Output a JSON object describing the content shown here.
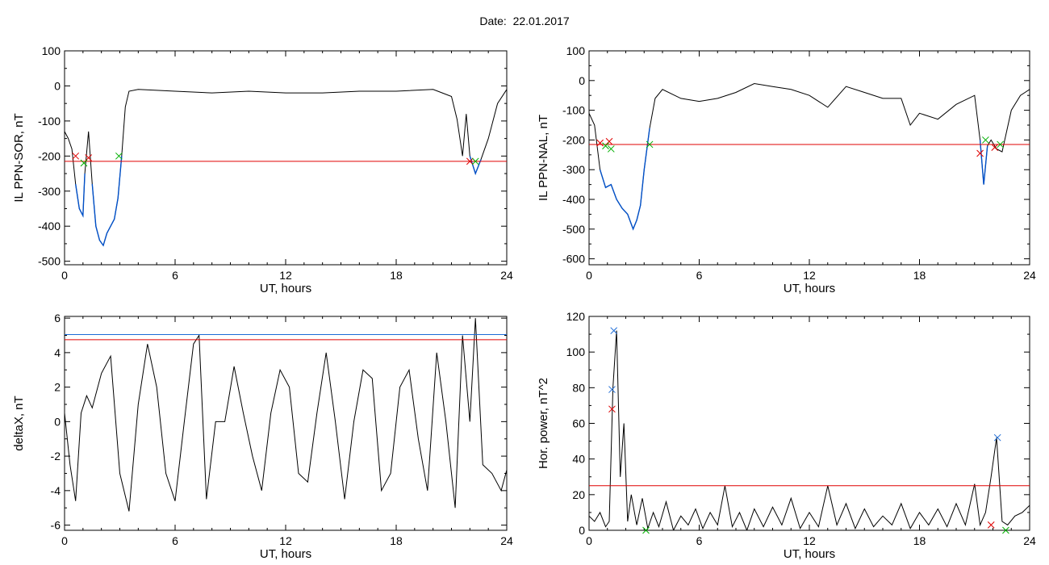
{
  "page": {
    "title": "Date:  22.01.2017"
  },
  "colors": {
    "series": "#000000",
    "highlight": "#0050c8",
    "threshold_red": "#e00000",
    "threshold_blue": "#1c6bd6",
    "marker_red": "#e00000",
    "marker_green": "#00b000",
    "marker_blue": "#1c6bd6"
  },
  "chart_data": [
    {
      "type": "line",
      "xlabel": "UT, hours",
      "ylabel": "IL PPN-SOR, nT",
      "xlim": [
        0,
        24
      ],
      "ylim": [
        -510,
        100
      ],
      "xticks": [
        0,
        6,
        12,
        18,
        24
      ],
      "yticks": [
        -500,
        -400,
        -300,
        -200,
        -100,
        0,
        100
      ],
      "series": [
        {
          "x": [
            0,
            0.2,
            0.4,
            0.6,
            0.8,
            1.0,
            1.1,
            1.3,
            1.5,
            1.7,
            1.9,
            2.1,
            2.3,
            2.5,
            2.7,
            2.9,
            3.1,
            3.3,
            3.5,
            4,
            6,
            8,
            10,
            12,
            14,
            16,
            18,
            20,
            20.5,
            21,
            21.3,
            21.6,
            21.8,
            22.0,
            22.3,
            22.6,
            23,
            23.5,
            24
          ],
          "y": [
            -130,
            -150,
            -180,
            -280,
            -350,
            -370,
            -250,
            -130,
            -280,
            -400,
            -440,
            -455,
            -420,
            -400,
            -380,
            -320,
            -200,
            -60,
            -15,
            -10,
            -15,
            -20,
            -15,
            -20,
            -20,
            -15,
            -15,
            -10,
            -20,
            -30,
            -95,
            -200,
            -80,
            -200,
            -250,
            -210,
            -150,
            -50,
            -10
          ]
        }
      ],
      "highlight_segments": [
        {
          "x": [
            0.6,
            0.8,
            1.0,
            1.1
          ],
          "y": [
            -280,
            -350,
            -370,
            -250
          ]
        },
        {
          "x": [
            1.5,
            1.7,
            1.9,
            2.1,
            2.3,
            2.5,
            2.7,
            2.9,
            3.1
          ],
          "y": [
            -280,
            -400,
            -440,
            -455,
            -420,
            -400,
            -380,
            -320,
            -200
          ]
        },
        {
          "x": [
            22.0,
            22.3,
            22.6
          ],
          "y": [
            -200,
            -250,
            -210
          ]
        }
      ],
      "hlines": [
        {
          "y": -215,
          "color": "threshold_red"
        }
      ],
      "markers": [
        {
          "x": 0.6,
          "y": -200,
          "color": "marker_red"
        },
        {
          "x": 1.3,
          "y": -205,
          "color": "marker_red"
        },
        {
          "x": 1.05,
          "y": -220,
          "color": "marker_green"
        },
        {
          "x": 2.95,
          "y": -200,
          "color": "marker_green"
        },
        {
          "x": 22.0,
          "y": -215,
          "color": "marker_red"
        },
        {
          "x": 22.3,
          "y": -215,
          "color": "marker_green"
        }
      ]
    },
    {
      "type": "line",
      "xlabel": "UT, hours",
      "ylabel": "IL PPN-NAL, nT",
      "xlim": [
        0,
        24
      ],
      "ylim": [
        -620,
        100
      ],
      "xticks": [
        0,
        6,
        12,
        18,
        24
      ],
      "yticks": [
        -600,
        -500,
        -400,
        -300,
        -200,
        -100,
        0,
        100
      ],
      "series": [
        {
          "x": [
            0,
            0.3,
            0.6,
            0.9,
            1.2,
            1.5,
            1.8,
            2.1,
            2.4,
            2.6,
            2.8,
            3.0,
            3.3,
            3.6,
            4,
            5,
            6,
            7,
            8,
            9,
            10,
            11,
            12,
            13,
            14,
            15,
            16,
            17,
            17.5,
            18,
            19,
            20,
            21,
            21.3,
            21.5,
            21.7,
            21.9,
            22.2,
            22.5,
            23,
            23.5,
            24
          ],
          "y": [
            -110,
            -150,
            -300,
            -360,
            -350,
            -400,
            -430,
            -450,
            -500,
            -470,
            -420,
            -300,
            -160,
            -60,
            -30,
            -60,
            -70,
            -60,
            -40,
            -10,
            -20,
            -30,
            -50,
            -90,
            -20,
            -40,
            -60,
            -60,
            -150,
            -110,
            -130,
            -80,
            -50,
            -200,
            -350,
            -220,
            -200,
            -230,
            -240,
            -100,
            -50,
            -30
          ]
        }
      ],
      "highlight_segments": [
        {
          "x": [
            0.6,
            0.9,
            1.2,
            1.5,
            1.8,
            2.1,
            2.4,
            2.6,
            2.8,
            3.0,
            3.3
          ],
          "y": [
            -300,
            -360,
            -350,
            -400,
            -430,
            -450,
            -500,
            -470,
            -420,
            -300,
            -160
          ]
        },
        {
          "x": [
            21.3,
            21.5,
            21.7
          ],
          "y": [
            -200,
            -350,
            -220
          ]
        }
      ],
      "hlines": [
        {
          "y": -215,
          "color": "threshold_red"
        }
      ],
      "markers": [
        {
          "x": 0.6,
          "y": -210,
          "color": "marker_red"
        },
        {
          "x": 1.1,
          "y": -205,
          "color": "marker_red"
        },
        {
          "x": 0.9,
          "y": -220,
          "color": "marker_green"
        },
        {
          "x": 1.2,
          "y": -230,
          "color": "marker_green"
        },
        {
          "x": 3.3,
          "y": -215,
          "color": "marker_green"
        },
        {
          "x": 21.3,
          "y": -245,
          "color": "marker_red"
        },
        {
          "x": 21.6,
          "y": -200,
          "color": "marker_green"
        },
        {
          "x": 22.1,
          "y": -225,
          "color": "marker_red"
        },
        {
          "x": 22.4,
          "y": -215,
          "color": "marker_green"
        }
      ]
    },
    {
      "type": "line",
      "xlabel": "UT, hours",
      "ylabel": "deltaX, nT",
      "xlim": [
        0,
        24
      ],
      "ylim": [
        -6.3,
        6.1
      ],
      "xticks": [
        0,
        6,
        12,
        18,
        24
      ],
      "yticks": [
        -6,
        -4,
        -2,
        0,
        2,
        4,
        6
      ],
      "series": [
        {
          "x": [
            0,
            0.3,
            0.6,
            0.9,
            1.2,
            1.5,
            2.0,
            2.5,
            3.0,
            3.5,
            4.0,
            4.5,
            5.0,
            5.5,
            6.0,
            6.5,
            7.0,
            7.3,
            7.7,
            8.2,
            8.7,
            9.2,
            9.7,
            10.2,
            10.7,
            11.2,
            11.7,
            12.2,
            12.7,
            13.2,
            13.7,
            14.2,
            14.7,
            15.2,
            15.7,
            16.2,
            16.7,
            17.2,
            17.7,
            18.2,
            18.7,
            19.2,
            19.7,
            20.2,
            20.7,
            21.2,
            21.6,
            22.0,
            22.3,
            22.7,
            23.2,
            23.7,
            24.0
          ],
          "y": [
            0.5,
            -2.5,
            -4.6,
            0.5,
            1.5,
            0.8,
            2.8,
            3.8,
            -3.0,
            -5.2,
            1.0,
            4.5,
            2.0,
            -3.0,
            -4.6,
            0.0,
            4.5,
            5.0,
            -4.5,
            0.0,
            0.0,
            3.2,
            0.5,
            -2.0,
            -4.0,
            0.5,
            3.0,
            2.0,
            -3.0,
            -3.5,
            0.5,
            4.0,
            0.0,
            -4.5,
            0.0,
            3.0,
            2.5,
            -4.0,
            -3.0,
            2.0,
            3.0,
            -1.0,
            -4.0,
            4.0,
            0.0,
            -5.0,
            5.0,
            0.0,
            6.0,
            -2.5,
            -3.0,
            -4.0,
            -2.8
          ]
        }
      ],
      "hlines": [
        {
          "y": 5.05,
          "color": "threshold_blue"
        },
        {
          "y": 4.75,
          "color": "threshold_red"
        }
      ],
      "markers": []
    },
    {
      "type": "line",
      "xlabel": "UT, hours",
      "ylabel": "Hor. power, nT^2",
      "xlim": [
        0,
        24
      ],
      "ylim": [
        0,
        120
      ],
      "xticks": [
        0,
        6,
        12,
        18,
        24
      ],
      "yticks": [
        0,
        20,
        40,
        60,
        80,
        100,
        120
      ],
      "series": [
        {
          "x": [
            0,
            0.3,
            0.6,
            0.9,
            1.1,
            1.3,
            1.5,
            1.7,
            1.9,
            2.1,
            2.3,
            2.6,
            2.9,
            3.2,
            3.5,
            3.8,
            4.2,
            4.6,
            5.0,
            5.4,
            5.8,
            6.2,
            6.6,
            7.0,
            7.4,
            7.8,
            8.2,
            8.6,
            9.0,
            9.5,
            10.0,
            10.5,
            11.0,
            11.5,
            12.0,
            12.5,
            13.0,
            13.5,
            14.0,
            14.5,
            15.0,
            15.5,
            16.0,
            16.5,
            17.0,
            17.5,
            18.0,
            18.5,
            19.0,
            19.5,
            20.0,
            20.5,
            21.0,
            21.3,
            21.6,
            21.9,
            22.2,
            22.5,
            22.8,
            23.2,
            23.6,
            24.0
          ],
          "y": [
            8,
            5,
            10,
            2,
            5,
            80,
            112,
            30,
            60,
            5,
            20,
            3,
            18,
            1,
            10,
            2,
            16,
            0,
            8,
            3,
            12,
            1,
            10,
            3,
            25,
            2,
            10,
            0,
            12,
            2,
            13,
            3,
            18,
            1,
            10,
            2,
            25,
            3,
            15,
            1,
            12,
            2,
            8,
            3,
            15,
            1,
            10,
            3,
            12,
            2,
            15,
            3,
            26,
            3,
            10,
            30,
            52,
            5,
            3,
            8,
            10,
            14
          ]
        }
      ],
      "hlines": [
        {
          "y": 25,
          "color": "threshold_red"
        }
      ],
      "markers": [
        {
          "x": 1.35,
          "y": 112,
          "color": "marker_blue"
        },
        {
          "x": 1.25,
          "y": 79,
          "color": "marker_blue"
        },
        {
          "x": 1.25,
          "y": 68,
          "color": "marker_red"
        },
        {
          "x": 3.1,
          "y": 0,
          "color": "marker_green"
        },
        {
          "x": 22.25,
          "y": 52,
          "color": "marker_blue"
        },
        {
          "x": 21.9,
          "y": 3,
          "color": "marker_red"
        },
        {
          "x": 22.7,
          "y": 0,
          "color": "marker_green"
        }
      ]
    }
  ]
}
